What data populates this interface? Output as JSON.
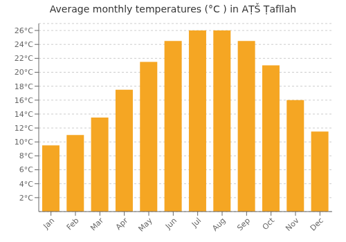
{
  "chart_data": {
    "type": "bar",
    "title": "Average monthly temperatures (°C ) in AṬŠ Ṭafīlah",
    "categories": [
      "Jan",
      "Feb",
      "Mar",
      "Apr",
      "May",
      "Jun",
      "Jul",
      "Aug",
      "Sep",
      "Oct",
      "Nov",
      "Dec"
    ],
    "values": [
      9.5,
      11.0,
      13.5,
      17.5,
      21.5,
      24.5,
      26.0,
      26.0,
      24.5,
      21.0,
      16.0,
      11.5
    ],
    "color": "#F5A623",
    "ylim": [
      0,
      27
    ],
    "yticks": [
      {
        "value": 2,
        "label": "2°C"
      },
      {
        "value": 4,
        "label": "4°C"
      },
      {
        "value": 6,
        "label": "6°C"
      },
      {
        "value": 8,
        "label": "8°C"
      },
      {
        "value": 10,
        "label": "10°C"
      },
      {
        "value": 12,
        "label": "12°C"
      },
      {
        "value": 14,
        "label": "14°C"
      },
      {
        "value": 16,
        "label": "16°C"
      },
      {
        "value": 18,
        "label": "18°C"
      },
      {
        "value": 20,
        "label": "20°C"
      },
      {
        "value": 22,
        "label": "22°C"
      },
      {
        "value": 24,
        "label": "24°C"
      },
      {
        "value": 26,
        "label": "26°C"
      }
    ],
    "grid": true
  }
}
